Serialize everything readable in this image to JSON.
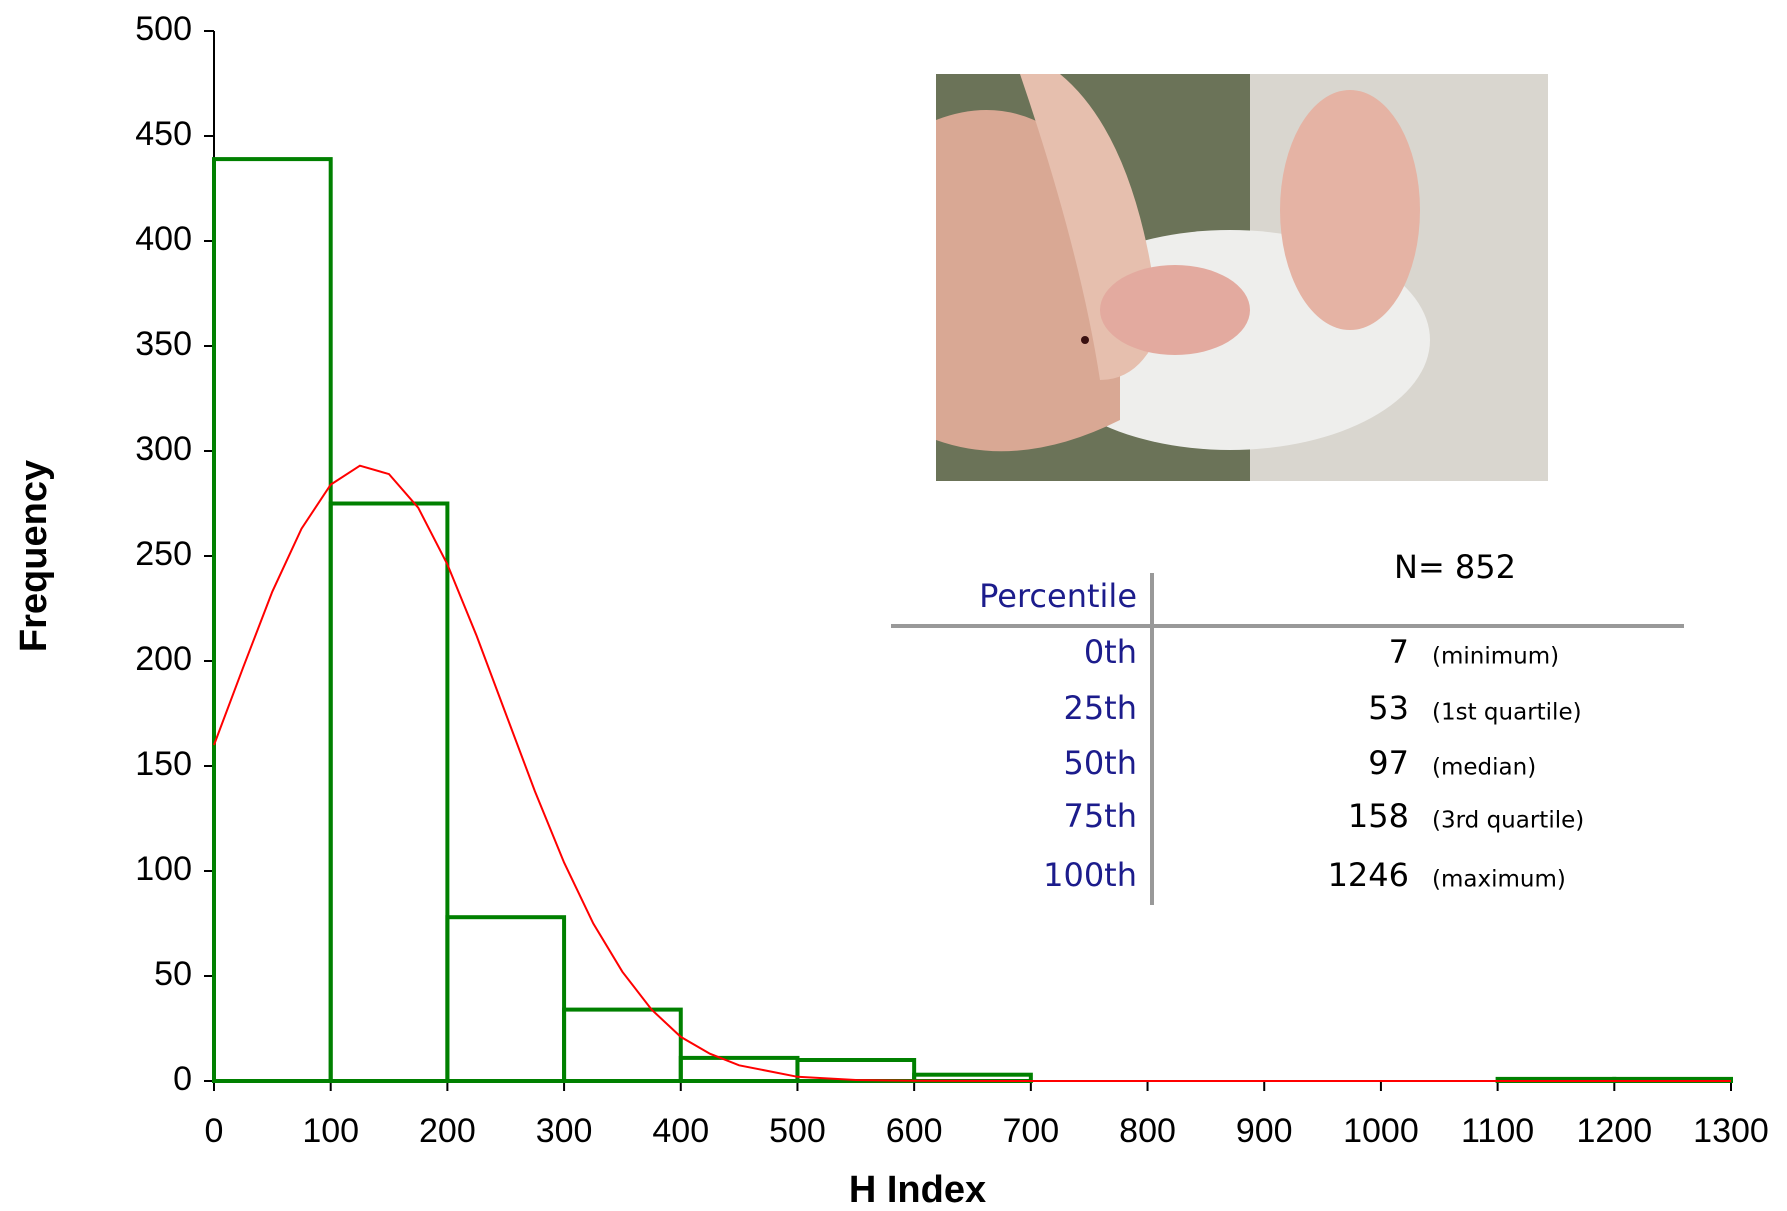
{
  "chart_data": {
    "type": "histogram",
    "x_label": "H Index",
    "y_label": "Frequency",
    "bins": [
      0,
      100,
      200,
      300,
      400,
      500,
      600,
      700,
      800,
      900,
      1000,
      1100,
      1200,
      1300
    ],
    "values": [
      439,
      275,
      78,
      34,
      11,
      10,
      3,
      0,
      0,
      0,
      0,
      1,
      1
    ],
    "color": "#008000",
    "fit": {
      "color": "#ff0000",
      "x": [
        0,
        25,
        50,
        75,
        100,
        125,
        150,
        175,
        200,
        225,
        250,
        275,
        300,
        325,
        350,
        375,
        400,
        425,
        450,
        500,
        550,
        600,
        700,
        1300
      ],
      "y": [
        160,
        197,
        233,
        263,
        284,
        293,
        289,
        273,
        246,
        212,
        175,
        138,
        104,
        75,
        52,
        34,
        21,
        13,
        7.5,
        2,
        0.5,
        0.1,
        0,
        0
      ]
    },
    "xlim": [
      0,
      1300
    ],
    "xticks": [
      0,
      100,
      200,
      300,
      400,
      500,
      600,
      700,
      800,
      900,
      1000,
      1100,
      1200,
      1300
    ],
    "ylim": [
      0,
      500
    ],
    "yticks": [
      0,
      50,
      100,
      150,
      200,
      250,
      300,
      350,
      400,
      450,
      500
    ]
  },
  "table": {
    "title": "N= 852",
    "header": "Percentile",
    "rows": [
      {
        "percentile": "0th",
        "value": 7,
        "note": "(minimum)"
      },
      {
        "percentile": "25th",
        "value": 53,
        "note": "(1st quartile)"
      },
      {
        "percentile": "50th",
        "value": 97,
        "note": "(median)"
      },
      {
        "percentile": "75th",
        "value": 158,
        "note": "(3rd quartile)"
      },
      {
        "percentile": "100th",
        "value": 1246,
        "note": "(maximum)"
      }
    ]
  }
}
